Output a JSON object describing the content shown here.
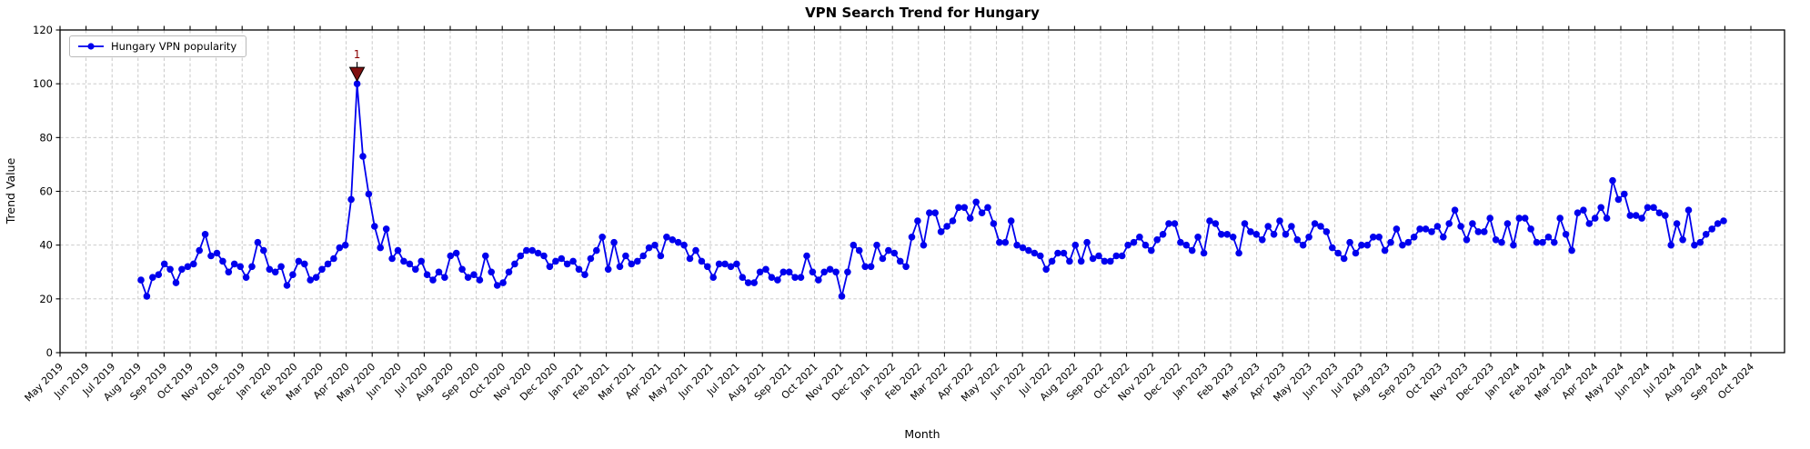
{
  "title": "VPN Search Trend for Hungary",
  "axes": {
    "x_label": "Month",
    "y_label": "Trend Value",
    "y_ticks": [
      0,
      20,
      40,
      60,
      80,
      100,
      120
    ],
    "y_max": 120
  },
  "legend": {
    "label": "Hungary VPN popularity",
    "position": "upper-left"
  },
  "colors": {
    "line": "#0000ee",
    "marker": "#0000ee",
    "annotation_text": "#8b0000",
    "annotation_marker": "#7f1010",
    "grid": "#c4c4c4",
    "axis": "#000000",
    "background": "#ffffff"
  },
  "chart_data": {
    "type": "line",
    "title": "VPN Search Trend for Hungary",
    "xlabel": "Month",
    "ylabel": "Trend Value",
    "ylim": [
      0,
      120
    ],
    "grid": true,
    "grid_style": "dashed",
    "legend_position": "upper-left",
    "x_tick_labels": [
      "May 2019",
      "Jun 2019",
      "Jul 2019",
      "Aug 2019",
      "Sep 2019",
      "Oct 2019",
      "Nov 2019",
      "Dec 2019",
      "Jan 2020",
      "Feb 2020",
      "Mar 2020",
      "Apr 2020",
      "May 2020",
      "Jun 2020",
      "Jul 2020",
      "Aug 2020",
      "Sep 2020",
      "Oct 2020",
      "Nov 2020",
      "Dec 2020",
      "Jan 2021",
      "Feb 2021",
      "Mar 2021",
      "Apr 2021",
      "May 2021",
      "Jun 2021",
      "Jul 2021",
      "Aug 2021",
      "Sep 2021",
      "Oct 2021",
      "Nov 2021",
      "Dec 2021",
      "Jan 2022",
      "Feb 2022",
      "Mar 2022",
      "Apr 2022",
      "May 2022",
      "Jun 2022",
      "Jul 2022",
      "Aug 2022",
      "Sep 2022",
      "Oct 2022",
      "Nov 2022",
      "Dec 2022",
      "Jan 2023",
      "Feb 2023",
      "Mar 2023",
      "Apr 2023",
      "May 2023",
      "Jun 2023",
      "Jul 2023",
      "Aug 2023",
      "Sep 2023",
      "Oct 2023",
      "Nov 2023",
      "Dec 2023",
      "Jan 2024",
      "Feb 2024",
      "Mar 2024",
      "Apr 2024",
      "May 2024",
      "Jun 2024",
      "Jul 2024",
      "Aug 2024",
      "Sep 2024",
      "Oct 2024"
    ],
    "series": [
      {
        "name": "Hungary VPN popularity",
        "color": "#0000ee",
        "sampling": "weekly (estimated from pixels)",
        "start_date": "2019-08-04",
        "interval_days": 7,
        "values": [
          27,
          21,
          28,
          29,
          33,
          31,
          26,
          31,
          32,
          33,
          38,
          44,
          36,
          37,
          34,
          30,
          33,
          32,
          28,
          32,
          41,
          38,
          31,
          30,
          32,
          25,
          29,
          34,
          33,
          27,
          28,
          31,
          33,
          35,
          39,
          40,
          57,
          100,
          73,
          59,
          47,
          39,
          46,
          35,
          38,
          34,
          33,
          31,
          34,
          29,
          27,
          30,
          28,
          36,
          37,
          31,
          28,
          29,
          27,
          36,
          30,
          25,
          26,
          30,
          33,
          36,
          38,
          38,
          37,
          36,
          32,
          34,
          35,
          33,
          34,
          31,
          29,
          35,
          38,
          43,
          31,
          41,
          32,
          36,
          33,
          34,
          36,
          39,
          40,
          36,
          43,
          42,
          41,
          40,
          35,
          38,
          34,
          32,
          28,
          33,
          33,
          32,
          33,
          28,
          26,
          26,
          30,
          31,
          28,
          27,
          30,
          30,
          28,
          28,
          36,
          30,
          27,
          30,
          31,
          30,
          21,
          30,
          40,
          38,
          32,
          32,
          40,
          35,
          38,
          37,
          34,
          32,
          43,
          49,
          40,
          52,
          52,
          45,
          47,
          49,
          54,
          54,
          50,
          56,
          52,
          54,
          48,
          41,
          41,
          49,
          40,
          39,
          38,
          37,
          36,
          31,
          34,
          37,
          37,
          34,
          40,
          34,
          41,
          35,
          36,
          34,
          34,
          36,
          36,
          40,
          41,
          43,
          40,
          38,
          42,
          44,
          48,
          48,
          41,
          40,
          38,
          43,
          37,
          49,
          48,
          44,
          44,
          43,
          37,
          48,
          45,
          44,
          42,
          47,
          44,
          49,
          44,
          47,
          42,
          40,
          43,
          48,
          47,
          45,
          39,
          37,
          35,
          41,
          37,
          40,
          40,
          43,
          43,
          38,
          41,
          46,
          40,
          41,
          43,
          46,
          46,
          45,
          47,
          43,
          48,
          53,
          47,
          42,
          48,
          45,
          45,
          50,
          42,
          41,
          48,
          40,
          50,
          50,
          46,
          41,
          41,
          43,
          41,
          50,
          44,
          38,
          52,
          53,
          48,
          50,
          54,
          50,
          64,
          57,
          59,
          51,
          51,
          50,
          54,
          54,
          52,
          51,
          40,
          48,
          42,
          53,
          40,
          41,
          44,
          46,
          48,
          49
        ]
      }
    ],
    "annotations": [
      {
        "label": "1",
        "series": "Hungary VPN popularity",
        "point_index": 37,
        "value": 100,
        "marker": "triangle-down",
        "text_color": "#8b0000",
        "marker_color": "#7f1010"
      }
    ]
  }
}
